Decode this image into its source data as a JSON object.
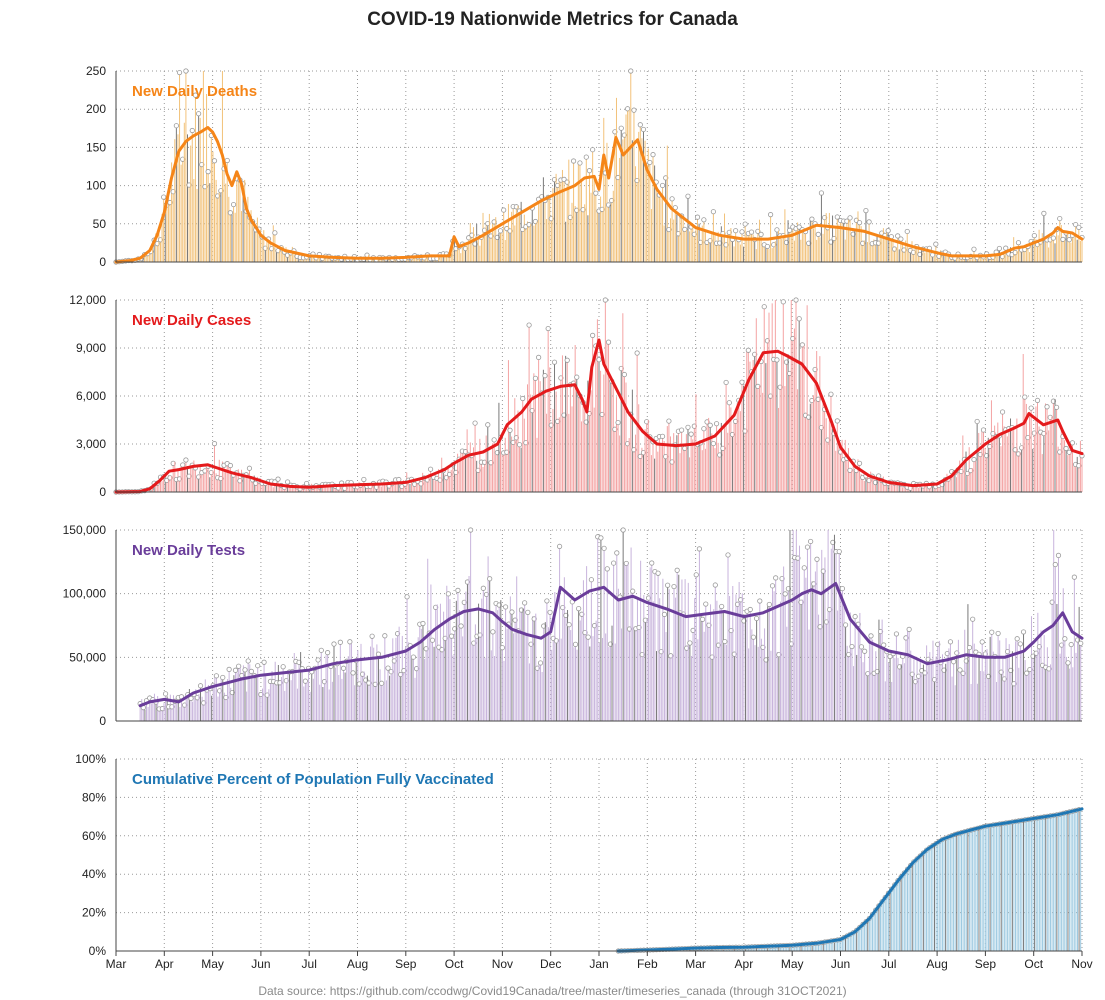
{
  "page": {
    "title": "COVID-19 Nationwide Metrics for Canada",
    "source_note": "Data source: https://github.com/ccodwg/Covid19Canada/tree/master/timeseries_canada (through 31OCT2021)"
  },
  "chart_data": [
    {
      "type": "bar",
      "title": "New Daily Deaths",
      "color": "#f58518",
      "bar_color": "#f2c27a",
      "x_labels": [
        "Mar",
        "Apr",
        "May",
        "Jun",
        "Jul",
        "Aug",
        "Sep",
        "Oct",
        "Nov",
        "Dec",
        "Jan",
        "Feb",
        "Mar",
        "Apr",
        "May",
        "Jun",
        "Jul",
        "Aug",
        "Sep",
        "Oct",
        "Nov"
      ],
      "y_ticks": [
        "0",
        "50",
        "100",
        "150",
        "200",
        "250"
      ],
      "ylim": [
        0,
        250
      ],
      "grid": true,
      "smoothed_series": {
        "x": [
          0,
          0.3,
          0.5,
          0.7,
          0.85,
          1.0,
          1.15,
          1.3,
          1.45,
          1.6,
          1.75,
          1.9,
          2.0,
          2.1,
          2.2,
          2.3,
          2.4,
          2.5,
          2.6,
          2.7,
          2.8,
          2.9,
          3.0,
          3.2,
          3.5,
          4.0,
          4.5,
          5.0,
          5.5,
          6.0,
          6.5,
          6.9,
          7.0,
          7.1,
          7.3,
          7.6,
          8.0,
          8.4,
          8.8,
          9.2,
          9.5,
          9.7,
          9.9,
          10.0,
          10.1,
          10.2,
          10.35,
          10.5,
          10.65,
          10.8,
          11.0,
          11.2,
          11.5,
          12.0,
          12.5,
          13.0,
          13.5,
          14.0,
          14.5,
          15.0,
          15.5,
          16.0,
          16.5,
          17.0,
          17.3,
          17.6,
          18.0,
          18.3,
          18.6,
          18.8,
          19.0,
          19.2,
          19.4,
          19.5,
          19.6,
          19.8,
          20.0
        ],
        "y": [
          0,
          2,
          5,
          15,
          35,
          65,
          110,
          145,
          158,
          165,
          170,
          176,
          170,
          158,
          140,
          115,
          100,
          118,
          102,
          70,
          55,
          45,
          35,
          25,
          15,
          8,
          6,
          5,
          5,
          6,
          8,
          8,
          33,
          20,
          25,
          35,
          50,
          65,
          80,
          92,
          100,
          110,
          112,
          95,
          140,
          110,
          163,
          140,
          150,
          160,
          120,
          95,
          70,
          45,
          35,
          30,
          30,
          35,
          48,
          45,
          40,
          30,
          20,
          12,
          8,
          8,
          8,
          10,
          18,
          20,
          25,
          30,
          38,
          45,
          40,
          38,
          30
        ]
      }
    },
    {
      "type": "bar",
      "title": "New Daily Cases",
      "color": "#e41a1c",
      "bar_color": "#f4a3a3",
      "x_labels": [
        "Mar",
        "Apr",
        "May",
        "Jun",
        "Jul",
        "Aug",
        "Sep",
        "Oct",
        "Nov",
        "Dec",
        "Jan",
        "Feb",
        "Mar",
        "Apr",
        "May",
        "Jun",
        "Jul",
        "Aug",
        "Sep",
        "Oct",
        "Nov"
      ],
      "y_ticks": [
        "0",
        "3,000",
        "6,000",
        "9,000",
        "12,000"
      ],
      "ylim": [
        0,
        12000
      ],
      "grid": true,
      "smoothed_series": {
        "x": [
          0,
          0.5,
          0.7,
          0.9,
          1.1,
          1.3,
          1.6,
          1.9,
          2.1,
          2.4,
          2.8,
          3.2,
          3.6,
          4.0,
          4.5,
          5.0,
          5.5,
          6.0,
          6.4,
          6.8,
          7.0,
          7.3,
          7.6,
          7.9,
          8.1,
          8.4,
          8.6,
          8.9,
          9.2,
          9.5,
          9.65,
          9.75,
          9.85,
          10.0,
          10.1,
          10.3,
          10.6,
          10.9,
          11.2,
          11.6,
          12.0,
          12.4,
          12.8,
          13.1,
          13.4,
          13.7,
          13.9,
          14.2,
          14.5,
          14.8,
          15.0,
          15.3,
          15.6,
          16.0,
          16.5,
          17.0,
          17.3,
          17.6,
          18.0,
          18.3,
          18.6,
          18.8,
          18.9,
          19.2,
          19.4,
          19.5,
          19.6,
          19.8,
          20.0
        ],
        "y": [
          0,
          30,
          200,
          700,
          1300,
          1400,
          1600,
          1700,
          1500,
          1200,
          900,
          500,
          350,
          300,
          400,
          450,
          500,
          600,
          900,
          1400,
          1800,
          2300,
          2500,
          3000,
          4200,
          5000,
          5800,
          6300,
          6600,
          6700,
          5800,
          5000,
          7800,
          9500,
          8000,
          6800,
          5000,
          3800,
          3000,
          2900,
          3000,
          3500,
          4800,
          7000,
          8700,
          8800,
          8500,
          8000,
          6800,
          4500,
          2800,
          1600,
          1000,
          600,
          400,
          500,
          1000,
          2000,
          3000,
          3600,
          4000,
          4300,
          4900,
          4200,
          4400,
          4500,
          3800,
          2600,
          2400
        ]
      }
    },
    {
      "type": "bar",
      "title": "New Daily Tests",
      "color": "#6a3d9a",
      "bar_color": "#c8b4dc",
      "x_labels": [
        "Mar",
        "Apr",
        "May",
        "Jun",
        "Jul",
        "Aug",
        "Sep",
        "Oct",
        "Nov",
        "Dec",
        "Jan",
        "Feb",
        "Mar",
        "Apr",
        "May",
        "Jun",
        "Jul",
        "Aug",
        "Sep",
        "Oct",
        "Nov"
      ],
      "y_ticks": [
        "0",
        "50,000",
        "100,000",
        "150,000"
      ],
      "ylim": [
        0,
        150000
      ],
      "grid": true,
      "smoothed_series": {
        "x": [
          0.5,
          0.7,
          1.0,
          1.3,
          1.6,
          2.0,
          2.3,
          2.6,
          3.0,
          3.5,
          4.0,
          4.5,
          5.0,
          5.5,
          6.0,
          6.3,
          6.6,
          6.9,
          7.2,
          7.5,
          7.8,
          8.0,
          8.2,
          8.5,
          8.8,
          9.0,
          9.2,
          9.5,
          9.8,
          10.1,
          10.4,
          10.7,
          11.0,
          11.4,
          11.8,
          12.2,
          12.6,
          13.0,
          13.4,
          13.7,
          14.0,
          14.2,
          14.4,
          14.6,
          14.9,
          15.2,
          15.6,
          16.0,
          16.4,
          16.8,
          17.2,
          17.6,
          18.0,
          18.4,
          18.8,
          19.0,
          19.2,
          19.4,
          19.6,
          19.8,
          20.0
        ],
        "y": [
          12000,
          15000,
          17000,
          15000,
          22000,
          27000,
          30000,
          33000,
          36000,
          38000,
          40000,
          45000,
          48000,
          50000,
          55000,
          62000,
          72000,
          80000,
          86000,
          88000,
          85000,
          78000,
          72000,
          68000,
          65000,
          70000,
          105000,
          95000,
          102000,
          105000,
          95000,
          98000,
          93000,
          88000,
          82000,
          84000,
          86000,
          82000,
          85000,
          90000,
          95000,
          100000,
          103000,
          100000,
          108000,
          80000,
          62000,
          55000,
          52000,
          45000,
          48000,
          52000,
          50000,
          50000,
          55000,
          62000,
          70000,
          75000,
          85000,
          70000,
          65000
        ]
      }
    },
    {
      "type": "area",
      "title": "Cumulative Percent of Population Fully Vaccinated",
      "color": "#1f77b4",
      "bar_color": "#9ecae1",
      "x_labels": [
        "Mar",
        "Apr",
        "May",
        "Jun",
        "Jul",
        "Aug",
        "Sep",
        "Oct",
        "Nov",
        "Dec",
        "Jan",
        "Feb",
        "Mar",
        "Apr",
        "May",
        "Jun",
        "Jul",
        "Aug",
        "Sep",
        "Oct",
        "Nov"
      ],
      "y_ticks": [
        "0%",
        "20%",
        "40%",
        "60%",
        "80%",
        "100%"
      ],
      "ylim": [
        0,
        100
      ],
      "grid": true,
      "smoothed_series": {
        "x": [
          10.4,
          11.0,
          11.5,
          12.0,
          12.5,
          13.0,
          13.5,
          14.0,
          14.5,
          15.0,
          15.3,
          15.6,
          15.9,
          16.2,
          16.5,
          16.8,
          17.1,
          17.4,
          17.7,
          18.0,
          18.5,
          19.0,
          19.5,
          20.0
        ],
        "y": [
          0,
          0.5,
          1,
          1.5,
          1.8,
          2.0,
          2.5,
          3,
          4,
          6,
          10,
          17,
          27,
          37,
          46,
          53,
          58,
          61,
          63,
          65,
          67,
          69,
          71,
          74
        ]
      }
    }
  ]
}
